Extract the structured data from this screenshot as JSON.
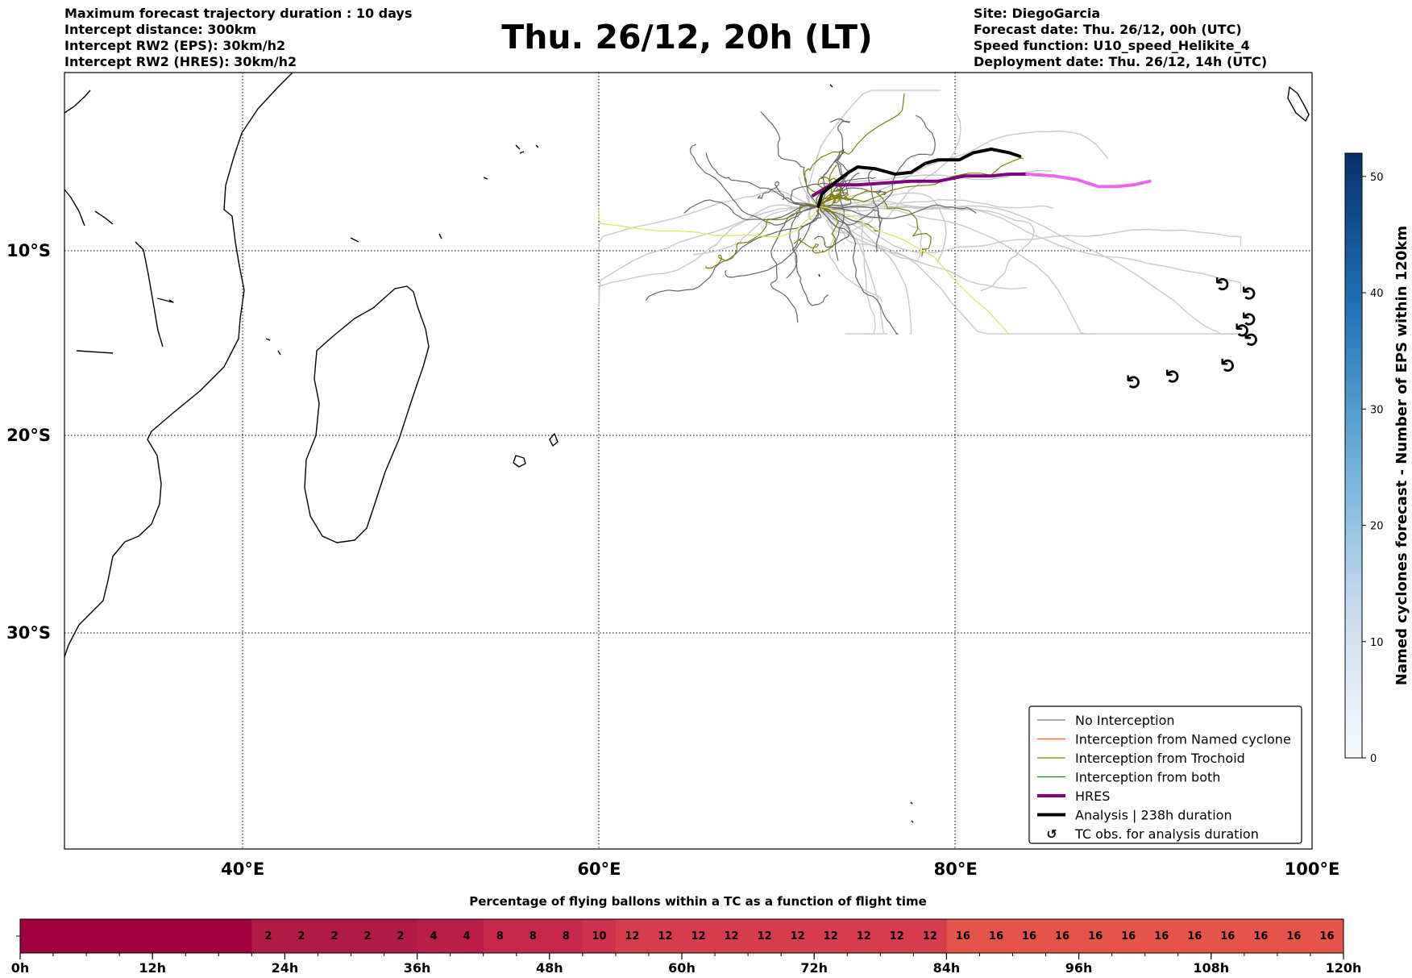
{
  "header": {
    "left": [
      "Maximum forecast trajectory duration : 10 days",
      "Intercept distance: 300km",
      "Intercept RW2 (EPS):  30km/h2",
      "Intercept RW2 (HRES): 30km/h2"
    ],
    "title": "Thu. 26/12, 20h (LT)",
    "right": [
      "Site: DiegoGarcia",
      "Forecast date: Thu. 26/12, 00h (UTC)",
      "Speed function: U10_speed_Helikite_4",
      "Deployment date: Thu. 26/12, 14h (UTC)"
    ]
  },
  "map": {
    "lon_range": [
      30,
      100
    ],
    "lat_range": [
      -42,
      0
    ],
    "lon_ticks": [
      {
        "v": 40,
        "label": "40°E"
      },
      {
        "v": 60,
        "label": "60°E"
      },
      {
        "v": 80,
        "label": "80°E"
      },
      {
        "v": 100,
        "label": "100°E"
      }
    ],
    "lat_ticks": [
      {
        "v": -10,
        "label": "10°S"
      },
      {
        "v": -20,
        "label": "20°S"
      },
      {
        "v": -30,
        "label": "30°S"
      }
    ],
    "tc_symbol": "↺",
    "tc_obs": [
      [
        95,
        -11.8
      ],
      [
        96.5,
        -12.3
      ],
      [
        96.5,
        -13.7
      ],
      [
        96.1,
        -14.3
      ],
      [
        96.6,
        -14.8
      ],
      [
        95.3,
        -16.2
      ],
      [
        92.2,
        -16.8
      ],
      [
        90,
        -17.1
      ]
    ],
    "analysis_track": [
      [
        72.3,
        -7.5
      ],
      [
        72.5,
        -6.8
      ],
      [
        73.2,
        -6.2
      ],
      [
        74,
        -5.6
      ],
      [
        74.5,
        -5.3
      ],
      [
        75.5,
        -5.4
      ],
      [
        76.6,
        -5.7
      ],
      [
        77.5,
        -5.6
      ],
      [
        78.3,
        -5.1
      ],
      [
        79,
        -4.9
      ],
      [
        80.2,
        -4.9
      ],
      [
        81,
        -4.5
      ],
      [
        82,
        -4.3
      ],
      [
        83,
        -4.5
      ],
      [
        83.6,
        -4.7
      ]
    ],
    "hres_track": [
      [
        72,
        -6.9
      ],
      [
        73,
        -6.3
      ],
      [
        74.5,
        -6.3
      ],
      [
        76,
        -6.2
      ],
      [
        77.5,
        -6.1
      ],
      [
        79,
        -6.1
      ],
      [
        80.5,
        -5.8
      ],
      [
        82,
        -5.8
      ],
      [
        83,
        -5.7
      ],
      [
        84,
        -5.7
      ]
    ],
    "hres_track_late": [
      [
        84,
        -5.7
      ],
      [
        85.5,
        -5.8
      ],
      [
        86.8,
        -6
      ],
      [
        88,
        -6.4
      ],
      [
        89,
        -6.4
      ],
      [
        90,
        -6.3
      ],
      [
        90.9,
        -6.1
      ]
    ]
  },
  "legend": {
    "items": [
      {
        "label": "No Interception",
        "color": "#777777",
        "kind": "line",
        "width": 1.3
      },
      {
        "label": "Interception from Named cyclone",
        "color": "#ff5a1f",
        "kind": "line",
        "width": 1.3
      },
      {
        "label": "Interception from Trochoid",
        "color": "#808000",
        "kind": "line",
        "width": 1.3
      },
      {
        "label": "Interception from both",
        "color": "#1a8a1a",
        "kind": "line",
        "width": 1.3
      },
      {
        "label": "HRES",
        "color": "#800080",
        "kind": "line",
        "width": 4
      },
      {
        "label": "Analysis | 238h duration",
        "color": "#000000",
        "kind": "line",
        "width": 4
      },
      {
        "label": "TC obs. for analysis duration",
        "color": "#000000",
        "kind": "symbol",
        "width": 0
      }
    ]
  },
  "colorbar": {
    "label": "Named cyclones forecast - Number of EPS within 120km",
    "ticks": [
      0,
      10,
      20,
      30,
      40,
      50
    ],
    "max": 52,
    "color_low": "#f7fbff",
    "color_high": "#08306b"
  },
  "bottom_bar": {
    "title": "Percentage of flying ballons within a TC as a function of flight time",
    "tick_labels": [
      "0h",
      "12h",
      "24h",
      "36h",
      "48h",
      "60h",
      "72h",
      "84h",
      "96h",
      "108h",
      "120h"
    ],
    "values": [
      "",
      "",
      "",
      "",
      "",
      "",
      "",
      "2",
      "2",
      "2",
      "2",
      "2",
      "4",
      "4",
      "8",
      "8",
      "8",
      "10",
      "12",
      "12",
      "12",
      "12",
      "12",
      "12",
      "12",
      "12",
      "12",
      "12",
      "16",
      "16",
      "16",
      "16",
      "16",
      "16",
      "16",
      "16",
      "16",
      "16",
      "16",
      "16"
    ],
    "colors": {
      "0": "#a0003e",
      "2": "#b01a46",
      "4": "#b81e48",
      "8": "#c6284b",
      "10": "#cd304c",
      "12": "#d63c4e",
      "16": "#e4544b"
    }
  }
}
